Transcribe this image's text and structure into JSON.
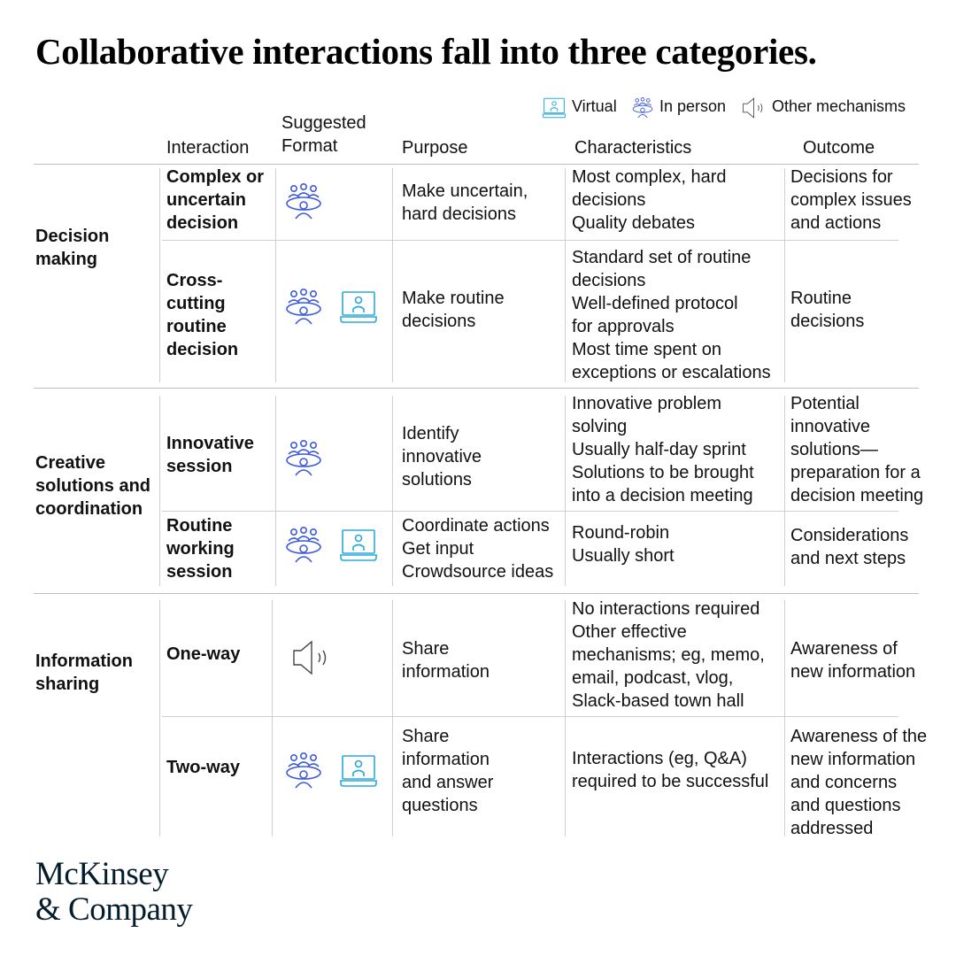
{
  "title": "Collaborative interactions fall into three categories.",
  "legend": [
    {
      "icon": "laptop-icon",
      "label": "Virtual",
      "color": "#2aa8d8"
    },
    {
      "icon": "people-group-icon",
      "label": "In person",
      "color": "#3d5bd9"
    },
    {
      "icon": "speaker-icon",
      "label": "Other mechanisms",
      "color": "#555555"
    }
  ],
  "headers": {
    "interaction": "Interaction",
    "format": "Suggested\nFormat",
    "purpose": "Purpose",
    "characteristics": "Characteristics",
    "outcome": "Outcome"
  },
  "groups": [
    {
      "label": "Decision\nmaking"
    },
    {
      "label": "Creative\nsolutions and\ncoordination"
    },
    {
      "label": "Information\nsharing"
    }
  ],
  "rows": [
    {
      "interaction": "Complex or\nuncertain\ndecision",
      "formats": [
        "in-person"
      ],
      "purpose": "Make uncertain,\nhard decisions",
      "characteristics": "Most complex, hard\ndecisions\nQuality debates",
      "outcome": "Decisions for\ncomplex issues\nand actions"
    },
    {
      "interaction": "Cross-\ncutting\nroutine\ndecision",
      "formats": [
        "in-person",
        "virtual"
      ],
      "purpose": "Make routine\ndecisions",
      "characteristics": "Standard set of routine\ndecisions\nWell-defined protocol\nfor approvals\nMost time spent on\nexceptions or escalations",
      "outcome": "Routine\ndecisions"
    },
    {
      "interaction": "Innovative\nsession",
      "formats": [
        "in-person"
      ],
      "purpose": "Identify\ninnovative\nsolutions",
      "characteristics": "Innovative problem\nsolving\nUsually half-day sprint\nSolutions to be brought\ninto a decision meeting",
      "outcome": "Potential\ninnovative\nsolutions—\npreparation for a\ndecision meeting"
    },
    {
      "interaction": "Routine\nworking\nsession",
      "formats": [
        "in-person",
        "virtual"
      ],
      "purpose": "Coordinate actions\nGet input\nCrowdsource ideas",
      "characteristics": "Round-robin\nUsually short",
      "outcome": "Considerations\nand next steps"
    },
    {
      "interaction": "One-way",
      "formats": [
        "other"
      ],
      "purpose": "Share\ninformation",
      "characteristics": "No interactions required\nOther effective\nmechanisms; eg, memo,\nemail, podcast, vlog,\nSlack-based town hall",
      "outcome": "Awareness of\nnew information"
    },
    {
      "interaction": "Two-way",
      "formats": [
        "in-person",
        "virtual"
      ],
      "purpose": "Share\ninformation\nand answer\nquestions",
      "characteristics": "Interactions (eg, Q&A)\nrequired to be successful",
      "outcome": "Awareness of the\nnew information\nand concerns\nand questions\naddressed"
    }
  ],
  "logo": "McKinsey\n& Company"
}
